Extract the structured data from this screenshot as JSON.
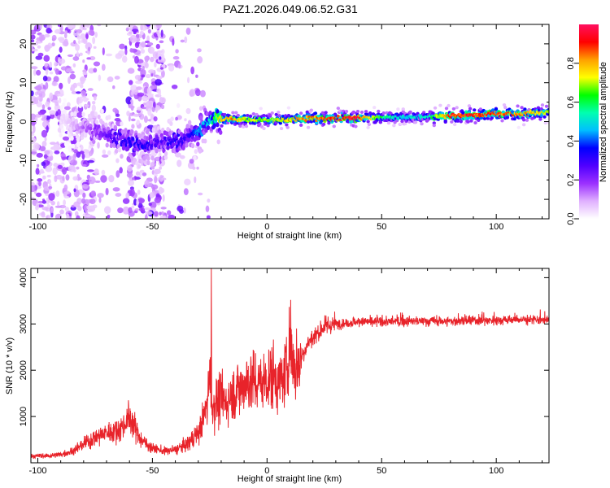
{
  "figure_title": "PAZ1.2026.049.06.52.G31",
  "chart_data": [
    {
      "type": "heatmap",
      "title": "PAZ1.2026.049.06.52.G31",
      "xlabel": "Height of straight line (km)",
      "ylabel": "Frequency (Hz)",
      "xlim": [
        -103,
        123
      ],
      "ylim": [
        -25,
        25
      ],
      "xticks": [
        -100,
        -50,
        0,
        50,
        100
      ],
      "yticks": [
        -20,
        -10,
        0,
        10,
        20
      ],
      "colorbar": {
        "label": "Normalized spectral amplitude",
        "range": [
          0,
          1
        ],
        "ticks": [
          0.0,
          0.2,
          0.4,
          0.6,
          0.8
        ],
        "tick_labels": [
          "0.0",
          "0.2",
          "0.4",
          "0.6",
          "0.8"
        ],
        "colors": [
          "#ffffff",
          "#e0b0ff",
          "#9b30ff",
          "#5000ff",
          "#0000ff",
          "#00bfff",
          "#00ffb0",
          "#00ff00",
          "#ffff00",
          "#ffa000",
          "#ff0000",
          "#ff1060"
        ]
      },
      "ridge": {
        "x": [
          -88,
          -80,
          -75,
          -70,
          -65,
          -60,
          -55,
          -50,
          -45,
          -40,
          -35,
          -30,
          -25,
          -20,
          -15,
          -10,
          -5,
          0,
          10,
          20,
          30,
          40,
          50,
          60,
          70,
          80,
          90,
          100,
          110,
          123
        ],
        "freq": [
          0,
          -1.5,
          -2.5,
          -3.5,
          -4.5,
          -5.5,
          -6,
          -6,
          -5,
          -5,
          -4.5,
          -2,
          0,
          0.8,
          0.6,
          0.5,
          0.3,
          0.3,
          0.6,
          0.8,
          0.9,
          1.0,
          1.1,
          1.2,
          1.3,
          1.5,
          1.7,
          1.8,
          2.0,
          2.3
        ],
        "amplitude": [
          0.05,
          0.15,
          0.2,
          0.25,
          0.3,
          0.35,
          0.35,
          0.3,
          0.3,
          0.35,
          0.3,
          0.45,
          0.5,
          0.8,
          0.85,
          0.75,
          0.7,
          0.7,
          0.8,
          0.85,
          0.95,
          0.95,
          0.6,
          0.5,
          0.55,
          0.9,
          0.95,
          0.9,
          0.85,
          0.75
        ]
      }
    },
    {
      "type": "line",
      "xlabel": "Height of straight line (km)",
      "ylabel": "SNR (10 * v/v)",
      "xlim": [
        -103,
        123
      ],
      "ylim": [
        0,
        4200
      ],
      "xticks": [
        -100,
        -50,
        0,
        50,
        100
      ],
      "yticks": [
        1000,
        2000,
        3000,
        4000
      ],
      "series": [
        {
          "name": "SNR",
          "color": "#e8232a",
          "x": [
            -103,
            -95,
            -90,
            -85,
            -80,
            -75,
            -70,
            -65,
            -62,
            -60,
            -58,
            -55,
            -50,
            -45,
            -40,
            -35,
            -30,
            -28,
            -26,
            -25,
            -24,
            -22,
            -20,
            -18,
            -15,
            -12,
            -10,
            -8,
            -5,
            -2,
            0,
            3,
            5,
            8,
            10,
            12,
            15,
            18,
            20,
            25,
            30,
            35,
            40,
            50,
            60,
            70,
            80,
            90,
            100,
            110,
            123
          ],
          "y": [
            150,
            150,
            180,
            250,
            400,
            550,
            650,
            700,
            850,
            1000,
            800,
            500,
            320,
            250,
            280,
            400,
            650,
            900,
            1300,
            2200,
            1200,
            1300,
            1400,
            1300,
            1500,
            1600,
            1700,
            1800,
            1700,
            1750,
            1800,
            1900,
            1700,
            1900,
            2700,
            2000,
            2300,
            2600,
            2700,
            2950,
            3000,
            3020,
            3050,
            3050,
            3060,
            3060,
            3060,
            3070,
            3080,
            3100,
            3070
          ]
        }
      ]
    }
  ]
}
